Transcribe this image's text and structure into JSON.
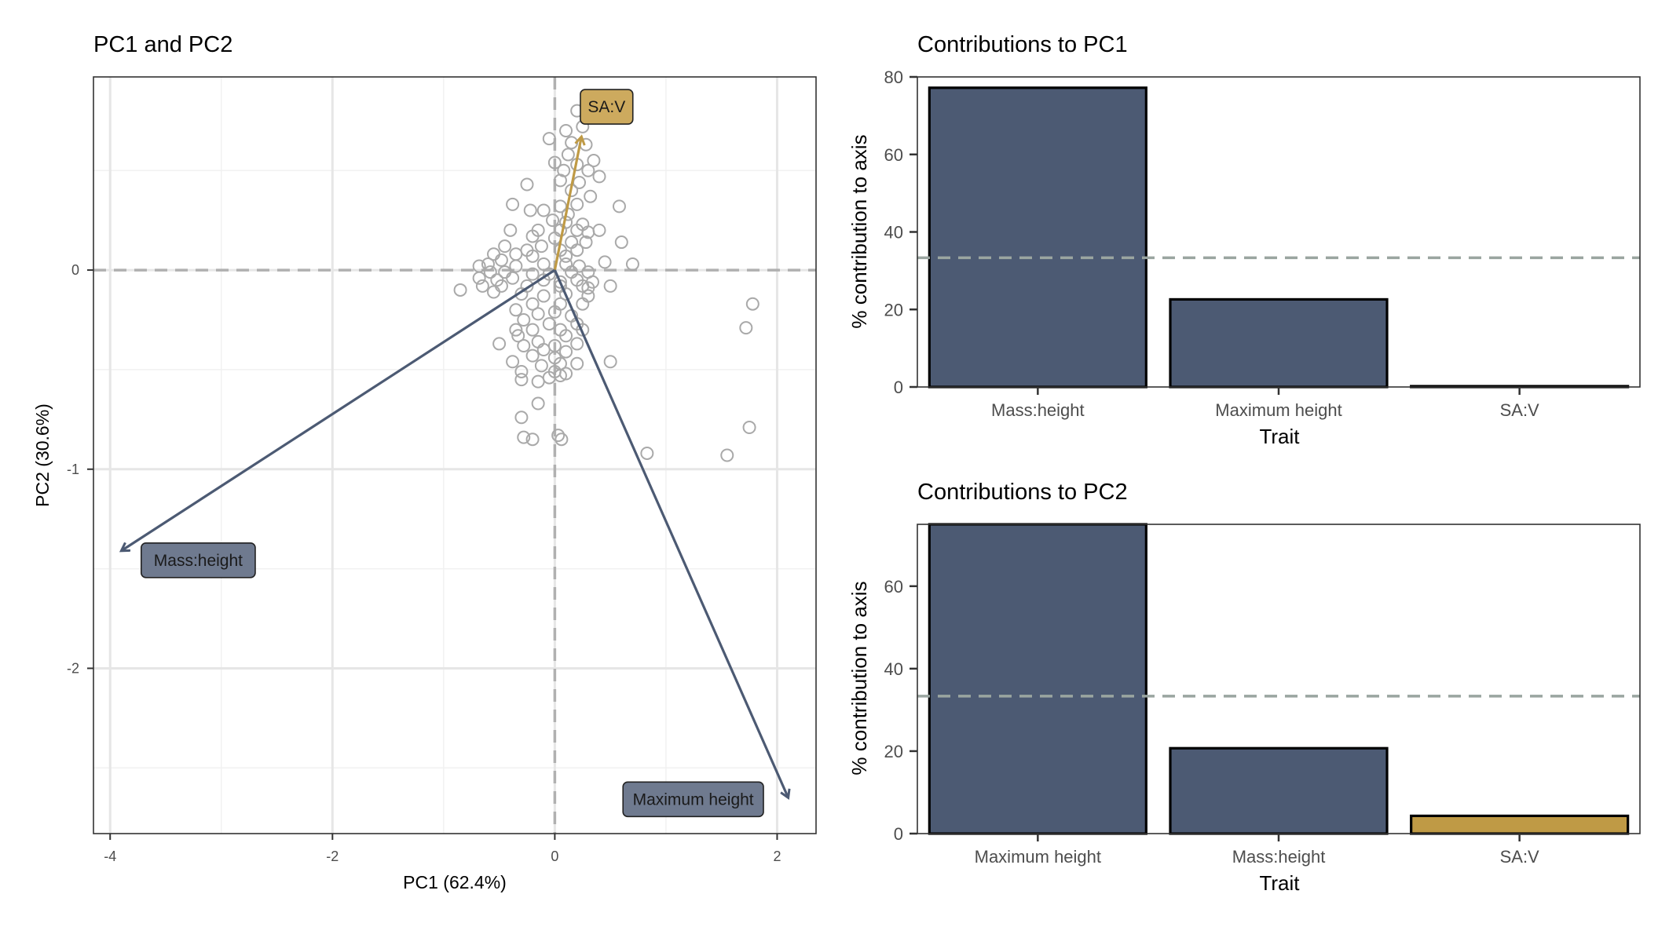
{
  "colors": {
    "navy": "#4c5a73",
    "gold": "#bf9a45",
    "gold_label": "#cdaa5e",
    "navy_label": "#6f7a8f",
    "points": "#a9a9a9",
    "reference_line": "#9aa5a0"
  },
  "chart_data": [
    {
      "type": "scatter",
      "title": "PC1 and PC2",
      "xlabel": "PC1 (62.4%)",
      "ylabel": "PC2 (30.6%)",
      "xlim": [
        -4.15,
        2.35
      ],
      "ylim": [
        -2.83,
        0.97
      ],
      "xticks": [
        -4,
        -2,
        0,
        2
      ],
      "yticks": [
        0,
        -1,
        -2
      ],
      "xtick_labels": [
        "-4",
        "-2",
        "0",
        "2"
      ],
      "ytick_labels": [
        "0",
        "-1",
        "-2"
      ],
      "grid": true,
      "reference_lines": {
        "x": 0,
        "y": 0,
        "style": "dashed"
      },
      "points": [
        [
          0.2,
          0.8
        ],
        [
          0.1,
          0.7
        ],
        [
          0.25,
          0.72
        ],
        [
          -0.05,
          0.66
        ],
        [
          0.15,
          0.64
        ],
        [
          0.28,
          0.63
        ],
        [
          0.12,
          0.58
        ],
        [
          0.35,
          0.55
        ],
        [
          0.0,
          0.54
        ],
        [
          0.2,
          0.53
        ],
        [
          0.08,
          0.5
        ],
        [
          0.3,
          0.5
        ],
        [
          0.4,
          0.47
        ],
        [
          -0.25,
          0.43
        ],
        [
          0.05,
          0.45
        ],
        [
          0.22,
          0.44
        ],
        [
          0.15,
          0.4
        ],
        [
          0.32,
          0.37
        ],
        [
          0.58,
          0.32
        ],
        [
          -0.38,
          0.33
        ],
        [
          -0.22,
          0.3
        ],
        [
          -0.1,
          0.3
        ],
        [
          0.05,
          0.32
        ],
        [
          0.2,
          0.33
        ],
        [
          0.12,
          0.28
        ],
        [
          -0.02,
          0.25
        ],
        [
          0.1,
          0.24
        ],
        [
          0.25,
          0.23
        ],
        [
          -0.4,
          0.2
        ],
        [
          -0.15,
          0.2
        ],
        [
          0.05,
          0.2
        ],
        [
          0.2,
          0.2
        ],
        [
          0.3,
          0.19
        ],
        [
          0.4,
          0.2
        ],
        [
          -0.2,
          0.17
        ],
        [
          0.0,
          0.16
        ],
        [
          0.15,
          0.14
        ],
        [
          0.28,
          0.14
        ],
        [
          0.6,
          0.14
        ],
        [
          -0.45,
          0.12
        ],
        [
          -0.25,
          0.1
        ],
        [
          -0.12,
          0.12
        ],
        [
          0.05,
          0.1
        ],
        [
          0.2,
          0.1
        ],
        [
          -0.35,
          0.08
        ],
        [
          -0.2,
          0.07
        ],
        [
          0.1,
          0.07
        ],
        [
          -0.55,
          0.08
        ],
        [
          -0.48,
          0.05
        ],
        [
          -0.6,
          0.03
        ],
        [
          -0.35,
          0.02
        ],
        [
          -0.1,
          0.03
        ],
        [
          0.1,
          0.03
        ],
        [
          0.22,
          0.02
        ],
        [
          0.45,
          0.04
        ],
        [
          0.7,
          0.03
        ],
        [
          -0.68,
          0.02
        ],
        [
          -0.58,
          -0.01
        ],
        [
          -0.45,
          -0.01
        ],
        [
          -0.2,
          -0.02
        ],
        [
          -0.05,
          -0.02
        ],
        [
          0.15,
          -0.01
        ],
        [
          0.3,
          -0.01
        ],
        [
          -0.68,
          -0.04
        ],
        [
          -0.52,
          -0.05
        ],
        [
          -0.38,
          -0.04
        ],
        [
          -0.1,
          -0.05
        ],
        [
          0.05,
          -0.06
        ],
        [
          0.2,
          -0.05
        ],
        [
          0.34,
          -0.06
        ],
        [
          -0.65,
          -0.08
        ],
        [
          -0.48,
          -0.08
        ],
        [
          -0.25,
          -0.08
        ],
        [
          0.05,
          -0.08
        ],
        [
          0.25,
          -0.08
        ],
        [
          0.5,
          -0.08
        ],
        [
          0.3,
          -0.09
        ],
        [
          -0.3,
          -0.12
        ],
        [
          -0.1,
          -0.13
        ],
        [
          0.1,
          -0.12
        ],
        [
          0.3,
          -0.13
        ],
        [
          -0.85,
          -0.1
        ],
        [
          -0.55,
          -0.11
        ],
        [
          -0.2,
          -0.17
        ],
        [
          0.05,
          -0.17
        ],
        [
          0.25,
          -0.17
        ],
        [
          -0.35,
          -0.2
        ],
        [
          -0.15,
          -0.22
        ],
        [
          0.0,
          -0.21
        ],
        [
          0.15,
          -0.23
        ],
        [
          -0.28,
          -0.25
        ],
        [
          -0.05,
          -0.27
        ],
        [
          0.2,
          -0.27
        ],
        [
          -0.35,
          -0.3
        ],
        [
          -0.2,
          -0.3
        ],
        [
          0.05,
          -0.3
        ],
        [
          0.25,
          -0.3
        ],
        [
          -0.33,
          -0.33
        ],
        [
          0.1,
          -0.33
        ],
        [
          -0.5,
          -0.37
        ],
        [
          -0.15,
          -0.36
        ],
        [
          0.2,
          -0.37
        ],
        [
          -0.28,
          -0.38
        ],
        [
          0.0,
          -0.38
        ],
        [
          -0.1,
          -0.4
        ],
        [
          0.1,
          -0.41
        ],
        [
          -0.2,
          -0.43
        ],
        [
          0.0,
          -0.44
        ],
        [
          -0.38,
          -0.46
        ],
        [
          0.05,
          -0.47
        ],
        [
          -0.12,
          -0.48
        ],
        [
          0.2,
          -0.47
        ],
        [
          -0.3,
          -0.51
        ],
        [
          0.0,
          -0.51
        ],
        [
          0.1,
          -0.52
        ],
        [
          0.05,
          -0.53
        ],
        [
          -0.05,
          -0.54
        ],
        [
          -0.3,
          -0.55
        ],
        [
          -0.15,
          -0.56
        ],
        [
          0.5,
          -0.46
        ],
        [
          -0.3,
          -0.74
        ],
        [
          -0.15,
          -0.67
        ],
        [
          -0.28,
          -0.84
        ],
        [
          -0.2,
          -0.85
        ],
        [
          0.03,
          -0.83
        ],
        [
          0.06,
          -0.85
        ],
        [
          0.83,
          -0.92
        ],
        [
          1.55,
          -0.93
        ],
        [
          1.75,
          -0.79
        ],
        [
          1.72,
          -0.29
        ],
        [
          1.78,
          -0.17
        ]
      ],
      "loadings": [
        {
          "name": "SA:V",
          "x": 0.24,
          "y": 0.67,
          "color": "gold"
        },
        {
          "name": "Mass:height",
          "x": -3.9,
          "y": -1.41,
          "color": "navy"
        },
        {
          "name": "Maximum height",
          "x": 2.1,
          "y": -2.65,
          "color": "navy"
        }
      ]
    },
    {
      "type": "bar",
      "title": "Contributions to PC1",
      "xlabel": "Trait",
      "ylabel": "% contribution to axis",
      "categories": [
        "Mass:height",
        "Maximum height",
        "SA:V"
      ],
      "values": [
        77.2,
        22.6,
        0.2
      ],
      "bar_colors": [
        "navy",
        "navy",
        "navy"
      ],
      "ylim": [
        0,
        80
      ],
      "yticks": [
        0,
        20,
        40,
        60,
        80
      ],
      "reference_line": 33.33
    },
    {
      "type": "bar",
      "title": "Contributions to PC2",
      "xlabel": "Trait",
      "ylabel": "% contribution to axis",
      "categories": [
        "Maximum height",
        "Mass:height",
        "SA:V"
      ],
      "values": [
        75.0,
        20.7,
        4.3
      ],
      "bar_colors": [
        "navy",
        "navy",
        "gold"
      ],
      "ylim": [
        0,
        75.0
      ],
      "yticks": [
        0,
        20,
        40,
        60
      ],
      "reference_line": 33.33
    }
  ]
}
